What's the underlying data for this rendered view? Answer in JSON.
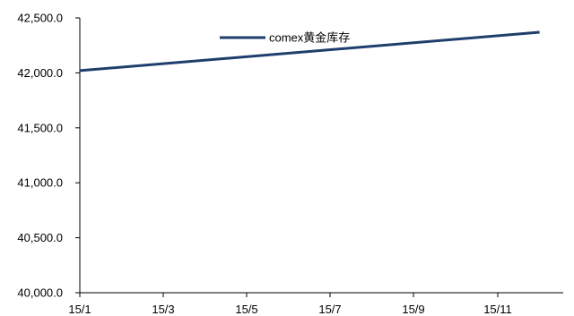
{
  "chart_data": {
    "type": "line",
    "title": "",
    "xlabel": "",
    "ylabel": "",
    "x_tick_labels": [
      "15/1",
      "15/3",
      "15/5",
      "15/7",
      "15/9",
      "15/11"
    ],
    "y_tick_labels": [
      "40,000.0",
      "40,500.0",
      "41,000.0",
      "41,500.0",
      "42,000.0",
      "42,500.0"
    ],
    "ylim": [
      40000,
      42500
    ],
    "x_range": [
      "15/1",
      "15/12"
    ],
    "grid": false,
    "legend_position": "top-center",
    "series": [
      {
        "name": "comex黄金库存",
        "color": "#1F3E6B",
        "x": [
          "15/1",
          "15/12"
        ],
        "values": [
          42020,
          42370
        ]
      }
    ]
  }
}
